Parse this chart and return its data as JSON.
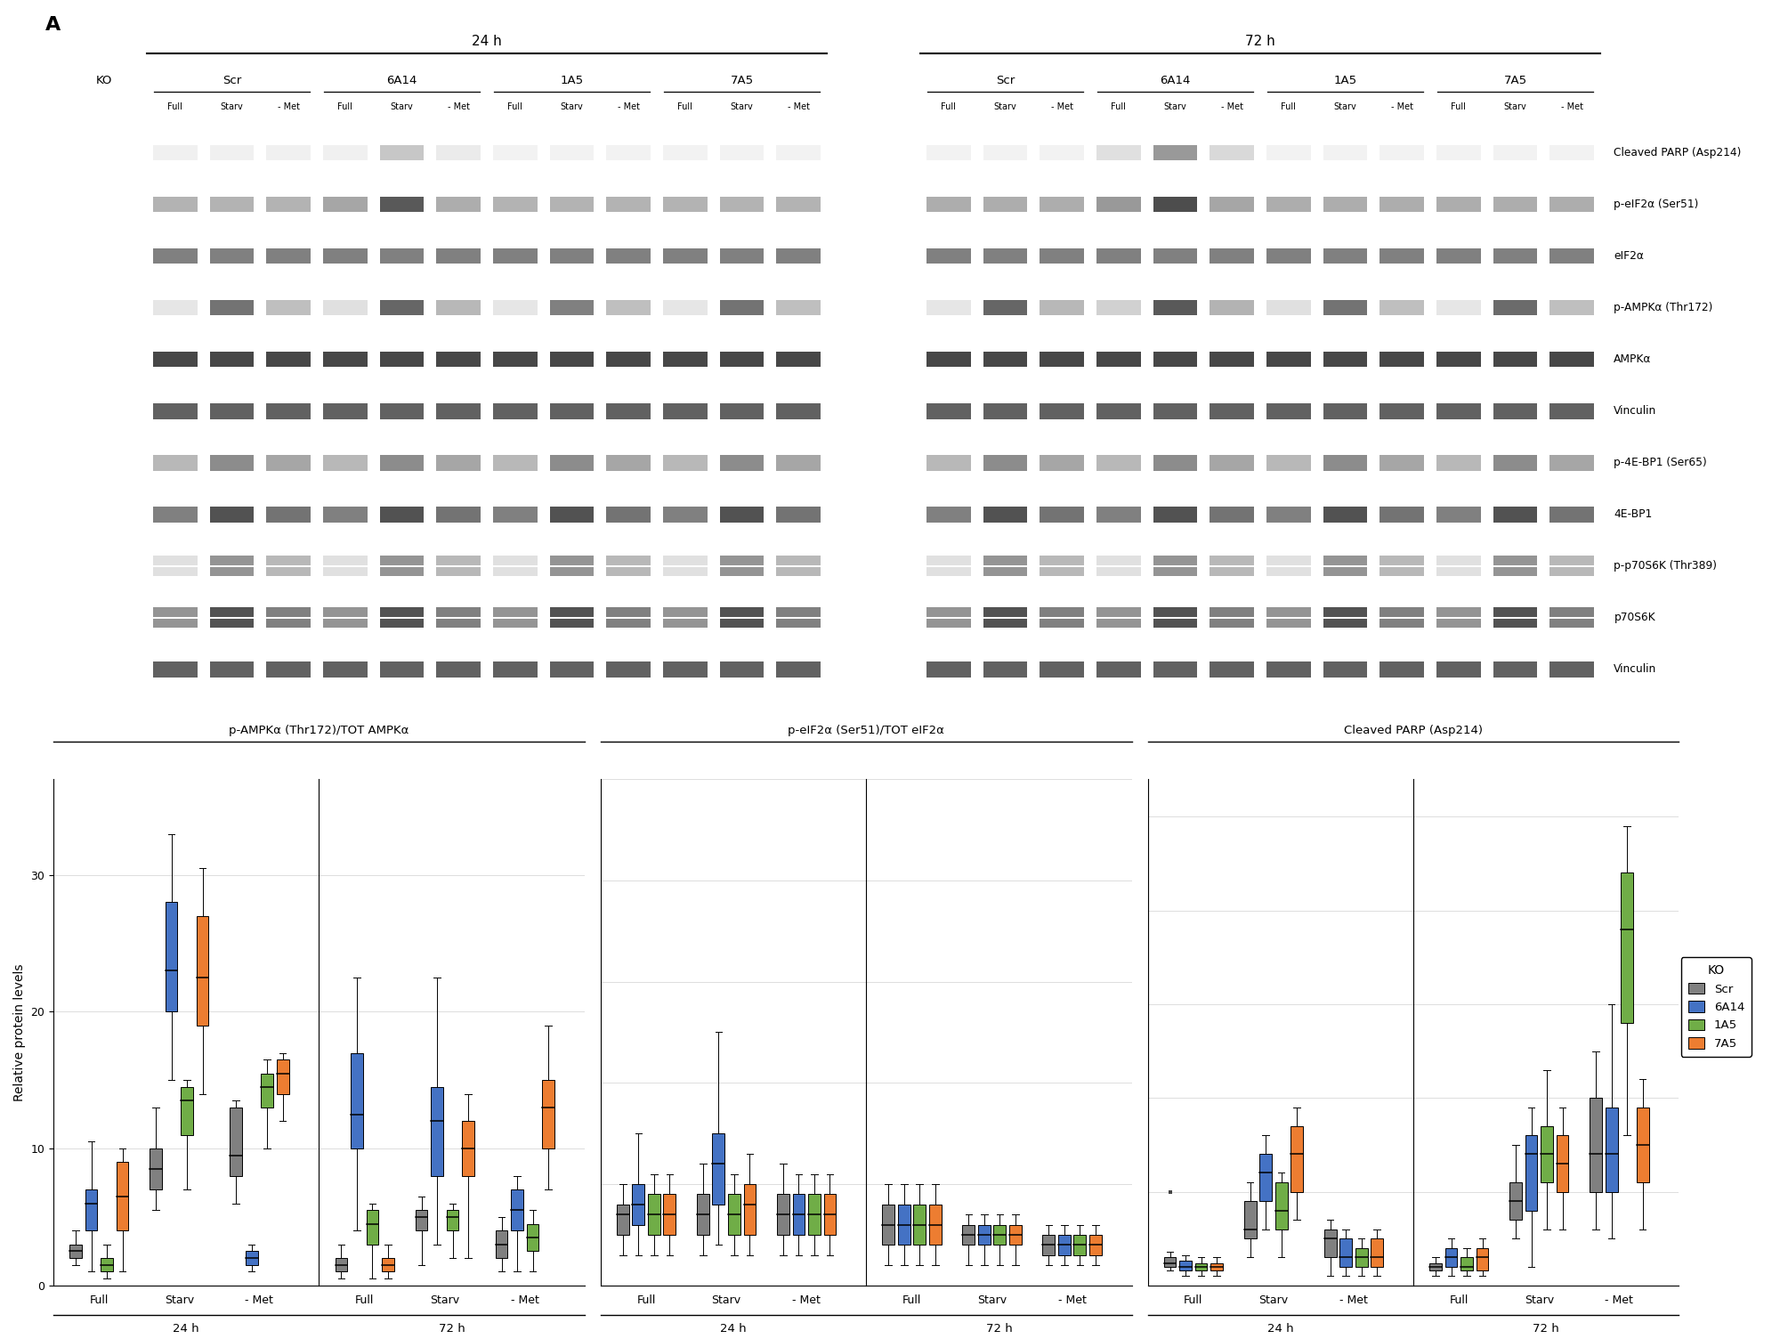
{
  "panel_A_markers": [
    "Cleaved PARP (Asp214)",
    "p-eIF2α (Ser51)",
    "eIF2α",
    "p-AMPKα (Thr172)",
    "AMPKα",
    "Vinculin",
    "p-4E-BP1 (Ser65)",
    "4E-BP1",
    "p-p70S6K (Thr389)",
    "p70S6K",
    "Vinculin"
  ],
  "panel_B_title_AMPK": "p-AMPKα (Thr172)/TOT AMPKα",
  "panel_B_title_eIF2": "p-eIF2α (Ser51)/TOT eIF2α",
  "panel_B_title_PARP": "Cleaved PARP (Asp214)",
  "colors": {
    "Scr": "#808080",
    "6A14": "#4472C4",
    "1A5": "#70AD47",
    "7A5": "#ED7D31"
  },
  "legend_labels": [
    "Scr",
    "6A14",
    "1A5",
    "7A5"
  ],
  "ylabel_B": "Relative protein levels",
  "x_labels": [
    "Full",
    "Starv",
    "- Met"
  ],
  "box_data": {
    "AMPK_24h": {
      "Full": {
        "Scr": {
          "whislo": 1.5,
          "q1": 2.0,
          "med": 2.5,
          "q3": 3.0,
          "whishi": 4.0,
          "fliers": []
        },
        "6A14": {
          "whislo": 1.0,
          "q1": 4.0,
          "med": 6.0,
          "q3": 7.0,
          "whishi": 10.5,
          "fliers": []
        },
        "1A5": {
          "whislo": 0.5,
          "q1": 1.0,
          "med": 1.5,
          "q3": 2.0,
          "whishi": 3.0,
          "fliers": []
        },
        "7A5": {
          "whislo": 1.0,
          "q1": 4.0,
          "med": 6.5,
          "q3": 9.0,
          "whishi": 10.0,
          "fliers": []
        }
      },
      "Starv": {
        "Scr": {
          "whislo": 5.5,
          "q1": 7.0,
          "med": 8.5,
          "q3": 10.0,
          "whishi": 13.0,
          "fliers": []
        },
        "6A14": {
          "whislo": 15.0,
          "q1": 20.0,
          "med": 23.0,
          "q3": 28.0,
          "whishi": 33.0,
          "fliers": []
        },
        "1A5": {
          "whislo": 7.0,
          "q1": 11.0,
          "med": 13.5,
          "q3": 14.5,
          "whishi": 15.0,
          "fliers": []
        },
        "7A5": {
          "whislo": 14.0,
          "q1": 19.0,
          "med": 22.5,
          "q3": 27.0,
          "whishi": 30.5,
          "fliers": []
        }
      },
      "- Met": {
        "Scr": {
          "whislo": 6.0,
          "q1": 8.0,
          "med": 9.5,
          "q3": 13.0,
          "whishi": 13.5,
          "fliers": []
        },
        "6A14": {
          "whislo": 1.0,
          "q1": 1.5,
          "med": 2.0,
          "q3": 2.5,
          "whishi": 3.0,
          "fliers": []
        },
        "1A5": {
          "whislo": 10.0,
          "q1": 13.0,
          "med": 14.5,
          "q3": 15.5,
          "whishi": 16.5,
          "fliers": []
        },
        "7A5": {
          "whislo": 12.0,
          "q1": 14.0,
          "med": 15.5,
          "q3": 16.5,
          "whishi": 17.0,
          "fliers": []
        }
      }
    },
    "AMPK_72h": {
      "Full": {
        "Scr": {
          "whislo": 0.5,
          "q1": 1.0,
          "med": 1.5,
          "q3": 2.0,
          "whishi": 3.0,
          "fliers": []
        },
        "6A14": {
          "whislo": 4.0,
          "q1": 10.0,
          "med": 12.5,
          "q3": 17.0,
          "whishi": 22.5,
          "fliers": []
        },
        "1A5": {
          "whislo": 0.5,
          "q1": 3.0,
          "med": 4.5,
          "q3": 5.5,
          "whishi": 6.0,
          "fliers": []
        },
        "7A5": {
          "whislo": 0.5,
          "q1": 1.0,
          "med": 1.5,
          "q3": 2.0,
          "whishi": 3.0,
          "fliers": []
        }
      },
      "Starv": {
        "Scr": {
          "whislo": 1.5,
          "q1": 4.0,
          "med": 5.0,
          "q3": 5.5,
          "whishi": 6.5,
          "fliers": []
        },
        "6A14": {
          "whislo": 3.0,
          "q1": 8.0,
          "med": 12.0,
          "q3": 14.5,
          "whishi": 22.5,
          "fliers": []
        },
        "1A5": {
          "whislo": 2.0,
          "q1": 4.0,
          "med": 5.0,
          "q3": 5.5,
          "whishi": 6.0,
          "fliers": []
        },
        "7A5": {
          "whislo": 2.0,
          "q1": 8.0,
          "med": 10.0,
          "q3": 12.0,
          "whishi": 14.0,
          "fliers": []
        }
      },
      "- Met": {
        "Scr": {
          "whislo": 1.0,
          "q1": 2.0,
          "med": 3.0,
          "q3": 4.0,
          "whishi": 5.0,
          "fliers": []
        },
        "6A14": {
          "whislo": 1.0,
          "q1": 4.0,
          "med": 5.5,
          "q3": 7.0,
          "whishi": 8.0,
          "fliers": []
        },
        "1A5": {
          "whislo": 1.0,
          "q1": 2.5,
          "med": 3.5,
          "q3": 4.5,
          "whishi": 5.5,
          "fliers": []
        },
        "7A5": {
          "whislo": 7.0,
          "q1": 10.0,
          "med": 13.0,
          "q3": 15.0,
          "whishi": 19.0,
          "fliers": []
        }
      }
    },
    "eIF2_24h": {
      "Full": {
        "Scr": {
          "whislo": 0.3,
          "q1": 0.5,
          "med": 0.7,
          "q3": 0.8,
          "whishi": 1.0,
          "fliers": []
        },
        "6A14": {
          "whislo": 0.3,
          "q1": 0.6,
          "med": 0.8,
          "q3": 1.0,
          "whishi": 1.5,
          "fliers": []
        },
        "1A5": {
          "whislo": 0.3,
          "q1": 0.5,
          "med": 0.7,
          "q3": 0.9,
          "whishi": 1.1,
          "fliers": []
        },
        "7A5": {
          "whislo": 0.3,
          "q1": 0.5,
          "med": 0.7,
          "q3": 0.9,
          "whishi": 1.1,
          "fliers": []
        }
      },
      "Starv": {
        "Scr": {
          "whislo": 0.3,
          "q1": 0.5,
          "med": 0.7,
          "q3": 0.9,
          "whishi": 1.2,
          "fliers": []
        },
        "6A14": {
          "whislo": 0.4,
          "q1": 0.8,
          "med": 1.2,
          "q3": 1.5,
          "whishi": 2.5,
          "fliers": []
        },
        "1A5": {
          "whislo": 0.3,
          "q1": 0.5,
          "med": 0.7,
          "q3": 0.9,
          "whishi": 1.1,
          "fliers": []
        },
        "7A5": {
          "whislo": 0.3,
          "q1": 0.5,
          "med": 0.8,
          "q3": 1.0,
          "whishi": 1.3,
          "fliers": []
        }
      },
      "- Met": {
        "Scr": {
          "whislo": 0.3,
          "q1": 0.5,
          "med": 0.7,
          "q3": 0.9,
          "whishi": 1.2,
          "fliers": []
        },
        "6A14": {
          "whislo": 0.3,
          "q1": 0.5,
          "med": 0.7,
          "q3": 0.9,
          "whishi": 1.1,
          "fliers": []
        },
        "1A5": {
          "whislo": 0.3,
          "q1": 0.5,
          "med": 0.7,
          "q3": 0.9,
          "whishi": 1.1,
          "fliers": []
        },
        "7A5": {
          "whislo": 0.3,
          "q1": 0.5,
          "med": 0.7,
          "q3": 0.9,
          "whishi": 1.1,
          "fliers": []
        }
      }
    },
    "eIF2_72h": {
      "Full": {
        "Scr": {
          "whislo": 0.2,
          "q1": 0.4,
          "med": 0.6,
          "q3": 0.8,
          "whishi": 1.0,
          "fliers": []
        },
        "6A14": {
          "whislo": 0.2,
          "q1": 0.4,
          "med": 0.6,
          "q3": 0.8,
          "whishi": 1.0,
          "fliers": []
        },
        "1A5": {
          "whislo": 0.2,
          "q1": 0.4,
          "med": 0.6,
          "q3": 0.8,
          "whishi": 1.0,
          "fliers": []
        },
        "7A5": {
          "whislo": 0.2,
          "q1": 0.4,
          "med": 0.6,
          "q3": 0.8,
          "whishi": 1.0,
          "fliers": []
        }
      },
      "Starv": {
        "Scr": {
          "whislo": 0.2,
          "q1": 0.4,
          "med": 0.5,
          "q3": 0.6,
          "whishi": 0.7,
          "fliers": []
        },
        "6A14": {
          "whislo": 0.2,
          "q1": 0.4,
          "med": 0.5,
          "q3": 0.6,
          "whishi": 0.7,
          "fliers": []
        },
        "1A5": {
          "whislo": 0.2,
          "q1": 0.4,
          "med": 0.5,
          "q3": 0.6,
          "whishi": 0.7,
          "fliers": []
        },
        "7A5": {
          "whislo": 0.2,
          "q1": 0.4,
          "med": 0.5,
          "q3": 0.6,
          "whishi": 0.7,
          "fliers": []
        }
      },
      "- Met": {
        "Scr": {
          "whislo": 0.2,
          "q1": 0.3,
          "med": 0.4,
          "q3": 0.5,
          "whishi": 0.6,
          "fliers": []
        },
        "6A14": {
          "whislo": 0.2,
          "q1": 0.3,
          "med": 0.4,
          "q3": 0.5,
          "whishi": 0.6,
          "fliers": []
        },
        "1A5": {
          "whislo": 0.2,
          "q1": 0.3,
          "med": 0.4,
          "q3": 0.5,
          "whishi": 0.6,
          "fliers": []
        },
        "7A5": {
          "whislo": 0.2,
          "q1": 0.3,
          "med": 0.4,
          "q3": 0.5,
          "whishi": 0.6,
          "fliers": []
        }
      }
    },
    "PARP_24h": {
      "Full": {
        "Scr": {
          "whislo": 0.8,
          "q1": 1.0,
          "med": 1.2,
          "q3": 1.5,
          "whishi": 1.8,
          "fliers": [
            5.0
          ]
        },
        "6A14": {
          "whislo": 0.5,
          "q1": 0.8,
          "med": 1.0,
          "q3": 1.3,
          "whishi": 1.6,
          "fliers": []
        },
        "1A5": {
          "whislo": 0.5,
          "q1": 0.8,
          "med": 1.0,
          "q3": 1.2,
          "whishi": 1.5,
          "fliers": []
        },
        "7A5": {
          "whislo": 0.5,
          "q1": 0.8,
          "med": 1.0,
          "q3": 1.2,
          "whishi": 1.5,
          "fliers": []
        }
      },
      "Starv": {
        "Scr": {
          "whislo": 1.5,
          "q1": 2.5,
          "med": 3.0,
          "q3": 4.5,
          "whishi": 5.5,
          "fliers": []
        },
        "6A14": {
          "whislo": 3.0,
          "q1": 4.5,
          "med": 6.0,
          "q3": 7.0,
          "whishi": 8.0,
          "fliers": []
        },
        "1A5": {
          "whislo": 1.5,
          "q1": 3.0,
          "med": 4.0,
          "q3": 5.5,
          "whishi": 6.0,
          "fliers": []
        },
        "7A5": {
          "whislo": 3.5,
          "q1": 5.0,
          "med": 7.0,
          "q3": 8.5,
          "whishi": 9.5,
          "fliers": []
        }
      },
      "- Met": {
        "Scr": {
          "whislo": 0.5,
          "q1": 1.5,
          "med": 2.5,
          "q3": 3.0,
          "whishi": 3.5,
          "fliers": []
        },
        "6A14": {
          "whislo": 0.5,
          "q1": 1.0,
          "med": 1.5,
          "q3": 2.5,
          "whishi": 3.0,
          "fliers": []
        },
        "1A5": {
          "whislo": 0.5,
          "q1": 1.0,
          "med": 1.5,
          "q3": 2.0,
          "whishi": 2.5,
          "fliers": []
        },
        "7A5": {
          "whislo": 0.5,
          "q1": 1.0,
          "med": 1.5,
          "q3": 2.5,
          "whishi": 3.0,
          "fliers": []
        }
      }
    },
    "PARP_72h": {
      "Full": {
        "Scr": {
          "whislo": 0.5,
          "q1": 0.8,
          "med": 1.0,
          "q3": 1.2,
          "whishi": 1.5,
          "fliers": []
        },
        "6A14": {
          "whislo": 0.5,
          "q1": 1.0,
          "med": 1.5,
          "q3": 2.0,
          "whishi": 2.5,
          "fliers": []
        },
        "1A5": {
          "whislo": 0.5,
          "q1": 0.8,
          "med": 1.0,
          "q3": 1.5,
          "whishi": 2.0,
          "fliers": []
        },
        "7A5": {
          "whislo": 0.5,
          "q1": 0.8,
          "med": 1.5,
          "q3": 2.0,
          "whishi": 2.5,
          "fliers": []
        }
      },
      "Starv": {
        "Scr": {
          "whislo": 2.5,
          "q1": 3.5,
          "med": 4.5,
          "q3": 5.5,
          "whishi": 7.5,
          "fliers": []
        },
        "6A14": {
          "whislo": 1.0,
          "q1": 4.0,
          "med": 7.0,
          "q3": 8.0,
          "whishi": 9.5,
          "fliers": []
        },
        "1A5": {
          "whislo": 3.0,
          "q1": 5.5,
          "med": 7.0,
          "q3": 8.5,
          "whishi": 11.5,
          "fliers": []
        },
        "7A5": {
          "whislo": 3.0,
          "q1": 5.0,
          "med": 6.5,
          "q3": 8.0,
          "whishi": 9.5,
          "fliers": []
        }
      },
      "- Met": {
        "Scr": {
          "whislo": 3.0,
          "q1": 5.0,
          "med": 7.0,
          "q3": 10.0,
          "whishi": 12.5,
          "fliers": []
        },
        "6A14": {
          "whislo": 2.5,
          "q1": 5.0,
          "med": 7.0,
          "q3": 9.5,
          "whishi": 15.0,
          "fliers": []
        },
        "1A5": {
          "whislo": 8.0,
          "q1": 14.0,
          "med": 19.0,
          "q3": 22.0,
          "whishi": 24.5,
          "fliers": []
        },
        "7A5": {
          "whislo": 3.0,
          "q1": 5.5,
          "med": 7.5,
          "q3": 9.5,
          "whishi": 11.0,
          "fliers": []
        }
      }
    }
  },
  "ylim_AMPK": [
    0,
    37
  ],
  "ylim_eIF2": [
    0,
    5
  ],
  "ylim_PARP": [
    0,
    27
  ],
  "yticks_AMPK": [
    0,
    10,
    20,
    30
  ],
  "yticks_eIF2": [
    0,
    1,
    2,
    3,
    4,
    5
  ],
  "yticks_PARP": [
    0,
    5,
    10,
    15,
    20,
    25
  ],
  "background_color": "#ffffff",
  "grid_color": "#dddddd"
}
